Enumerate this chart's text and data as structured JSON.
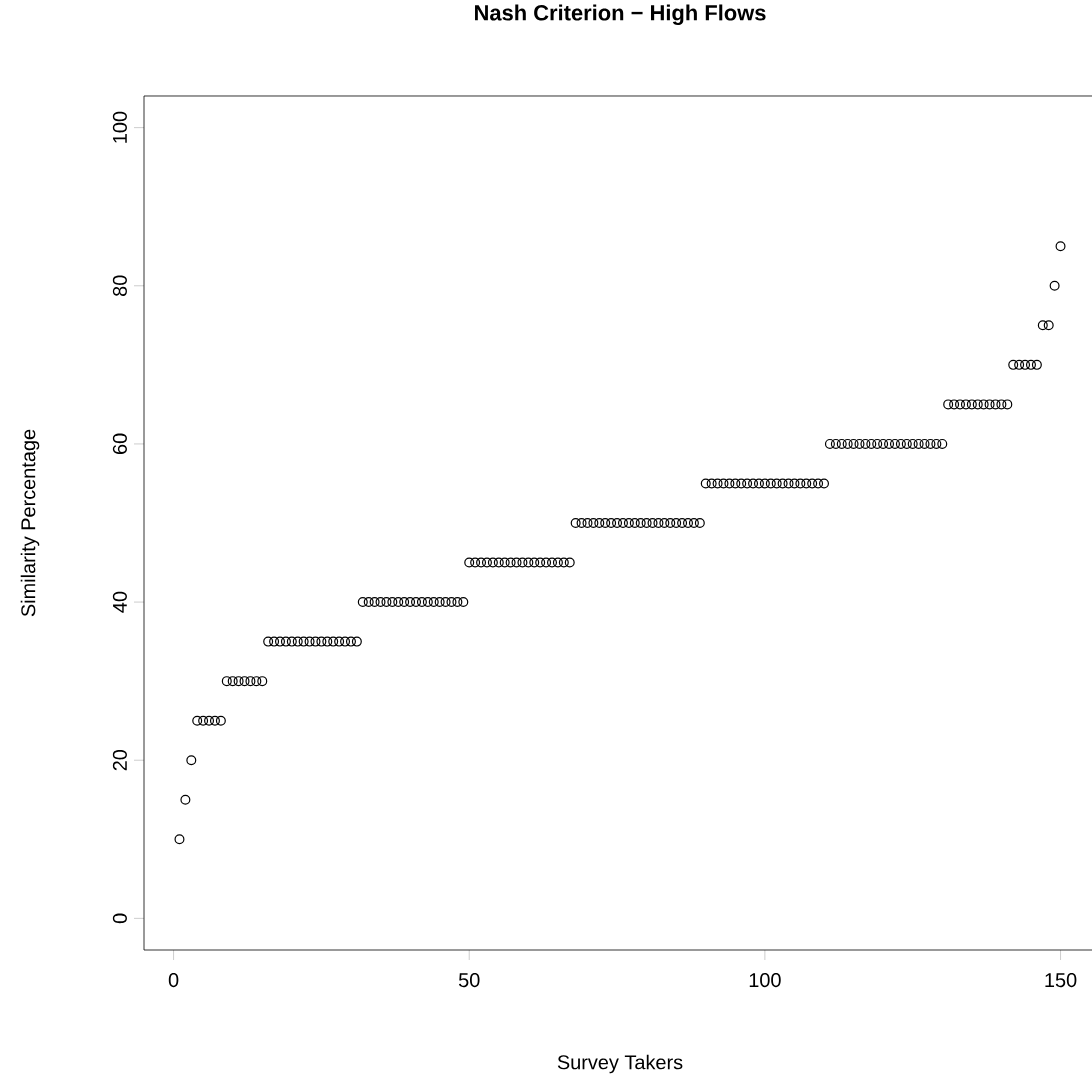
{
  "chart_data": {
    "type": "scatter",
    "title": "Nash Criterion − High Flows",
    "xlabel": "Survey Takers",
    "ylabel": "Similarity Percentage",
    "x": [
      1,
      2,
      3,
      4,
      5,
      6,
      7,
      8,
      9,
      10,
      11,
      12,
      13,
      14,
      15,
      16,
      17,
      18,
      19,
      20,
      21,
      22,
      23,
      24,
      25,
      26,
      27,
      28,
      29,
      30,
      31,
      32,
      33,
      34,
      35,
      36,
      37,
      38,
      39,
      40,
      41,
      42,
      43,
      44,
      45,
      46,
      47,
      48,
      49,
      50,
      51,
      52,
      53,
      54,
      55,
      56,
      57,
      58,
      59,
      60,
      61,
      62,
      63,
      64,
      65,
      66,
      67,
      68,
      69,
      70,
      71,
      72,
      73,
      74,
      75,
      76,
      77,
      78,
      79,
      80,
      81,
      82,
      83,
      84,
      85,
      86,
      87,
      88,
      89,
      90,
      91,
      92,
      93,
      94,
      95,
      96,
      97,
      98,
      99,
      100,
      101,
      102,
      103,
      104,
      105,
      106,
      107,
      108,
      109,
      110,
      111,
      112,
      113,
      114,
      115,
      116,
      117,
      118,
      119,
      120,
      121,
      122,
      123,
      124,
      125,
      126,
      127,
      128,
      129,
      130,
      131,
      132,
      133,
      134,
      135,
      136,
      137,
      138,
      139,
      140,
      141,
      142,
      143,
      144,
      145,
      146,
      147,
      148,
      149,
      150
    ],
    "series": [
      {
        "color": "#000000",
        "values": [
          10,
          15,
          20,
          25,
          25,
          25,
          25,
          25,
          30,
          30,
          30,
          30,
          30,
          30,
          30,
          35,
          35,
          35,
          35,
          35,
          35,
          35,
          35,
          35,
          35,
          35,
          35,
          35,
          35,
          35,
          35,
          40,
          40,
          40,
          40,
          40,
          40,
          40,
          40,
          40,
          40,
          40,
          40,
          40,
          40,
          40,
          40,
          40,
          40,
          45,
          45,
          45,
          45,
          45,
          45,
          45,
          45,
          45,
          45,
          45,
          45,
          45,
          45,
          45,
          45,
          45,
          45,
          50,
          50,
          50,
          50,
          50,
          50,
          50,
          50,
          50,
          50,
          50,
          50,
          50,
          50,
          50,
          50,
          50,
          50,
          50,
          50,
          50,
          50,
          55,
          55,
          55,
          55,
          55,
          55,
          55,
          55,
          55,
          55,
          55,
          55,
          55,
          55,
          55,
          55,
          55,
          55,
          55,
          55,
          55,
          60,
          60,
          60,
          60,
          60,
          60,
          60,
          60,
          60,
          60,
          60,
          60,
          60,
          60,
          60,
          60,
          60,
          60,
          60,
          60,
          65,
          65,
          65,
          65,
          65,
          65,
          65,
          65,
          65,
          65,
          65,
          70,
          70,
          70,
          70,
          70,
          75,
          75,
          80,
          85
        ]
      }
    ],
    "marker": "circle",
    "xlim": [
      -5,
      156
    ],
    "ylim": [
      -4,
      104
    ],
    "xticks": [
      0,
      50,
      100,
      150
    ],
    "yticks": [
      0,
      20,
      40,
      60,
      80,
      100
    ]
  }
}
